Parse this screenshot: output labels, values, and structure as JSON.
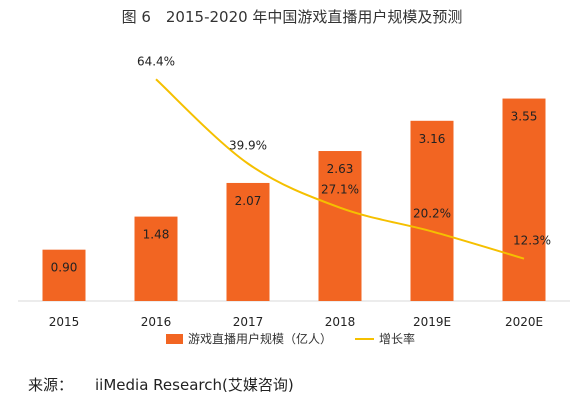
{
  "chart_data": {
    "type": "bar",
    "title": "图 6　2015-2020 年中国游戏直播用户规模及预测",
    "categories": [
      "2015",
      "2016",
      "2017",
      "2018",
      "2019E",
      "2020E"
    ],
    "series": [
      {
        "name": "游戏直播用户规模（亿人）",
        "type": "bar",
        "color": "#f26522",
        "values": [
          0.9,
          1.48,
          2.07,
          2.63,
          3.16,
          3.55
        ],
        "labels": [
          "0.90",
          "1.48",
          "2.07",
          "2.63",
          "3.16",
          "3.55"
        ]
      },
      {
        "name": "增长率",
        "type": "line",
        "color": "#f5c000",
        "values": [
          null,
          64.4,
          39.9,
          27.1,
          20.2,
          12.3
        ],
        "labels": [
          "",
          "64.4%",
          "39.9%",
          "27.1%",
          "20.2%",
          "12.3%"
        ]
      }
    ],
    "ylim": [
      0,
      3.7
    ],
    "ylim_right": [
      0,
      70
    ],
    "xlabel": "",
    "ylabel": "",
    "grid": false,
    "legend": "bottom"
  },
  "source": {
    "label": "来源：",
    "text": "iiMedia Research(艾媒咨询)"
  }
}
